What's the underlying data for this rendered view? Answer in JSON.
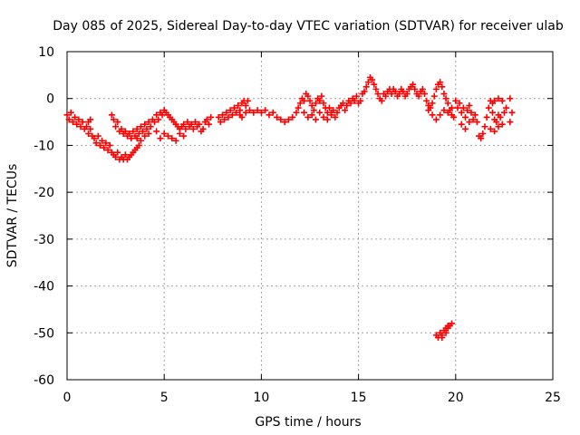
{
  "chart_data": {
    "type": "scatter",
    "title": "Day 085 of 2025, Sidereal Day-to-day VTEC variation (SDTVAR) for receiver ulab",
    "xlabel": "GPS time / hours",
    "ylabel": "SDTVAR / TECUs",
    "xlim": [
      0,
      25
    ],
    "ylim": [
      -60,
      10
    ],
    "xticks": [
      0,
      5,
      10,
      15,
      20,
      25
    ],
    "yticks": [
      -60,
      -50,
      -40,
      -30,
      -20,
      -10,
      0,
      10
    ],
    "xtick_labels": [
      "0",
      "5",
      "10",
      "15",
      "20",
      "25"
    ],
    "ytick_labels": [
      "-60",
      "-50",
      "-40",
      "-30",
      "-20",
      "-10",
      "0",
      "10"
    ],
    "grid": true,
    "marker": "+",
    "color": "#ff0000",
    "series": [
      {
        "name": "SDTVAR",
        "points": [
          [
            0.0,
            -3.5
          ],
          [
            0.1,
            -4.5
          ],
          [
            0.2,
            -3.0
          ],
          [
            0.3,
            -5.0
          ],
          [
            0.4,
            -4.0
          ],
          [
            0.5,
            -5.5
          ],
          [
            0.6,
            -4.5
          ],
          [
            0.7,
            -6.0
          ],
          [
            0.8,
            -5.0
          ],
          [
            0.9,
            -6.5
          ],
          [
            1.0,
            -6.0
          ],
          [
            1.1,
            -7.5
          ],
          [
            1.2,
            -6.5
          ],
          [
            1.3,
            -8.0
          ],
          [
            1.1,
            -5.0
          ],
          [
            1.2,
            -4.5
          ],
          [
            1.4,
            -8.5
          ],
          [
            1.5,
            -9.5
          ],
          [
            1.6,
            -8.0
          ],
          [
            1.7,
            -10.0
          ],
          [
            1.8,
            -9.0
          ],
          [
            1.9,
            -10.5
          ],
          [
            2.0,
            -9.5
          ],
          [
            2.1,
            -11.0
          ],
          [
            2.2,
            -10.0
          ],
          [
            2.3,
            -11.5
          ],
          [
            2.4,
            -12.0
          ],
          [
            2.5,
            -12.5
          ],
          [
            2.6,
            -11.5
          ],
          [
            2.7,
            -13.0
          ],
          [
            2.8,
            -12.5
          ],
          [
            2.9,
            -13.0
          ],
          [
            3.0,
            -12.0
          ],
          [
            3.1,
            -13.0
          ],
          [
            3.2,
            -12.5
          ],
          [
            3.3,
            -12.0
          ],
          [
            3.4,
            -11.5
          ],
          [
            3.5,
            -11.0
          ],
          [
            3.6,
            -10.5
          ],
          [
            3.7,
            -10.0
          ],
          [
            2.3,
            -3.5
          ],
          [
            2.4,
            -4.5
          ],
          [
            2.5,
            -6.0
          ],
          [
            2.6,
            -5.0
          ],
          [
            2.7,
            -7.0
          ],
          [
            2.8,
            -6.5
          ],
          [
            2.9,
            -7.5
          ],
          [
            3.0,
            -7.0
          ],
          [
            3.1,
            -8.0
          ],
          [
            3.2,
            -7.5
          ],
          [
            3.3,
            -8.5
          ],
          [
            3.4,
            -7.0
          ],
          [
            3.5,
            -8.0
          ],
          [
            3.6,
            -6.5
          ],
          [
            3.7,
            -7.5
          ],
          [
            3.8,
            -6.0
          ],
          [
            3.9,
            -7.0
          ],
          [
            4.0,
            -5.5
          ],
          [
            4.1,
            -6.5
          ],
          [
            4.2,
            -5.0
          ],
          [
            4.3,
            -6.0
          ],
          [
            4.4,
            -4.5
          ],
          [
            4.5,
            -5.0
          ],
          [
            4.6,
            -3.5
          ],
          [
            4.7,
            -4.5
          ],
          [
            4.8,
            -3.0
          ],
          [
            4.9,
            -3.5
          ],
          [
            5.0,
            -2.5
          ],
          [
            5.1,
            -3.0
          ],
          [
            5.2,
            -3.5
          ],
          [
            5.3,
            -4.0
          ],
          [
            5.4,
            -4.5
          ],
          [
            5.5,
            -5.0
          ],
          [
            5.6,
            -5.5
          ],
          [
            5.7,
            -6.0
          ],
          [
            5.8,
            -6.5
          ],
          [
            5.9,
            -6.0
          ],
          [
            6.0,
            -5.5
          ],
          [
            6.1,
            -6.5
          ],
          [
            6.2,
            -5.0
          ],
          [
            6.3,
            -6.0
          ],
          [
            6.4,
            -5.5
          ],
          [
            6.5,
            -6.5
          ],
          [
            6.6,
            -5.0
          ],
          [
            6.7,
            -6.0
          ],
          [
            6.8,
            -5.5
          ],
          [
            6.9,
            -7.0
          ],
          [
            7.0,
            -6.5
          ],
          [
            7.1,
            -5.0
          ],
          [
            7.2,
            -4.5
          ],
          [
            7.3,
            -5.5
          ],
          [
            7.4,
            -4.0
          ],
          [
            3.6,
            -8.5
          ],
          [
            3.8,
            -9.0
          ],
          [
            4.0,
            -8.0
          ],
          [
            4.2,
            -7.5
          ],
          [
            4.6,
            -7.0
          ],
          [
            4.8,
            -8.5
          ],
          [
            5.0,
            -7.5
          ],
          [
            5.2,
            -8.0
          ],
          [
            5.4,
            -8.5
          ],
          [
            5.6,
            -9.0
          ],
          [
            5.8,
            -7.5
          ],
          [
            6.0,
            -8.0
          ],
          [
            7.8,
            -4.0
          ],
          [
            7.9,
            -5.0
          ],
          [
            8.0,
            -3.5
          ],
          [
            8.1,
            -4.5
          ],
          [
            8.2,
            -3.0
          ],
          [
            8.3,
            -4.0
          ],
          [
            8.4,
            -2.5
          ],
          [
            8.5,
            -3.5
          ],
          [
            8.6,
            -2.0
          ],
          [
            8.7,
            -3.0
          ],
          [
            8.8,
            -1.5
          ],
          [
            8.9,
            -2.5
          ],
          [
            9.0,
            -1.0
          ],
          [
            9.1,
            -0.5
          ],
          [
            9.2,
            -1.5
          ],
          [
            9.3,
            -0.5
          ],
          [
            8.9,
            -3.5
          ],
          [
            9.0,
            -4.0
          ],
          [
            9.2,
            -3.0
          ],
          [
            9.4,
            -2.5
          ],
          [
            9.6,
            -3.0
          ],
          [
            9.8,
            -2.5
          ],
          [
            10.0,
            -3.0
          ],
          [
            10.2,
            -2.5
          ],
          [
            10.4,
            -3.5
          ],
          [
            10.6,
            -3.0
          ],
          [
            10.8,
            -4.0
          ],
          [
            11.0,
            -4.5
          ],
          [
            11.2,
            -5.0
          ],
          [
            11.4,
            -4.5
          ],
          [
            11.6,
            -4.0
          ],
          [
            11.8,
            -3.0
          ],
          [
            11.9,
            -2.0
          ],
          [
            12.0,
            -1.0
          ],
          [
            12.1,
            0.0
          ],
          [
            12.2,
            -0.5
          ],
          [
            12.3,
            1.0
          ],
          [
            12.4,
            0.5
          ],
          [
            12.5,
            -0.5
          ],
          [
            12.6,
            -1.5
          ],
          [
            12.7,
            -2.5
          ],
          [
            12.8,
            -1.0
          ],
          [
            12.9,
            0.0
          ],
          [
            13.0,
            -0.5
          ],
          [
            13.1,
            0.5
          ],
          [
            13.2,
            -1.0
          ],
          [
            13.3,
            -2.0
          ],
          [
            13.4,
            -3.0
          ],
          [
            13.5,
            -2.0
          ],
          [
            13.6,
            -3.5
          ],
          [
            13.7,
            -2.5
          ],
          [
            13.8,
            -4.0
          ],
          [
            13.9,
            -3.0
          ],
          [
            14.0,
            -2.0
          ],
          [
            14.1,
            -1.5
          ],
          [
            14.2,
            -1.0
          ],
          [
            12.2,
            -3.0
          ],
          [
            12.4,
            -4.0
          ],
          [
            12.6,
            -3.5
          ],
          [
            12.8,
            -4.5
          ],
          [
            13.0,
            -3.0
          ],
          [
            13.2,
            -4.0
          ],
          [
            13.4,
            -4.5
          ],
          [
            13.6,
            -3.0
          ],
          [
            14.3,
            -2.5
          ],
          [
            14.4,
            -1.5
          ],
          [
            14.5,
            -0.5
          ],
          [
            14.6,
            -1.0
          ],
          [
            14.7,
            0.0
          ],
          [
            14.8,
            -0.5
          ],
          [
            14.9,
            0.5
          ],
          [
            15.0,
            -1.0
          ],
          [
            15.1,
            -0.5
          ],
          [
            15.2,
            1.0
          ],
          [
            15.3,
            1.5
          ],
          [
            15.4,
            2.5
          ],
          [
            15.5,
            3.5
          ],
          [
            15.6,
            4.5
          ],
          [
            15.7,
            4.0
          ],
          [
            15.8,
            3.0
          ],
          [
            15.9,
            2.0
          ],
          [
            16.0,
            1.0
          ],
          [
            16.1,
            0.0
          ],
          [
            16.2,
            -0.5
          ],
          [
            16.3,
            1.0
          ],
          [
            16.4,
            0.5
          ],
          [
            16.5,
            1.5
          ],
          [
            16.6,
            2.0
          ],
          [
            16.7,
            1.0
          ],
          [
            16.8,
            2.0
          ],
          [
            16.9,
            1.5
          ],
          [
            17.0,
            0.5
          ],
          [
            17.1,
            1.0
          ],
          [
            17.2,
            2.0
          ],
          [
            17.3,
            1.5
          ],
          [
            17.4,
            0.5
          ],
          [
            17.5,
            1.0
          ],
          [
            17.6,
            2.0
          ],
          [
            17.7,
            2.5
          ],
          [
            17.8,
            3.0
          ],
          [
            17.9,
            2.0
          ],
          [
            18.0,
            1.0
          ],
          [
            18.1,
            0.5
          ],
          [
            18.2,
            1.5
          ],
          [
            18.3,
            2.0
          ],
          [
            18.4,
            1.0
          ],
          [
            18.5,
            -0.5
          ],
          [
            18.6,
            -1.5
          ],
          [
            18.7,
            -2.0
          ],
          [
            18.8,
            -1.0
          ],
          [
            18.9,
            0.5
          ],
          [
            19.0,
            2.0
          ],
          [
            19.1,
            3.0
          ],
          [
            19.2,
            3.5
          ],
          [
            19.3,
            2.5
          ],
          [
            19.4,
            1.0
          ],
          [
            19.5,
            0.0
          ],
          [
            19.6,
            -1.0
          ],
          [
            19.7,
            -2.5
          ],
          [
            19.8,
            -3.5
          ],
          [
            19.9,
            -4.0
          ],
          [
            18.6,
            -2.5
          ],
          [
            18.8,
            -3.5
          ],
          [
            19.0,
            -4.5
          ],
          [
            19.2,
            -3.5
          ],
          [
            19.4,
            -2.5
          ],
          [
            19.6,
            -3.0
          ],
          [
            19.8,
            -2.0
          ],
          [
            20.0,
            -0.5
          ],
          [
            20.1,
            -2.0
          ],
          [
            20.2,
            -1.0
          ],
          [
            20.3,
            -3.0
          ],
          [
            20.4,
            -2.0
          ],
          [
            20.5,
            -4.0
          ],
          [
            20.6,
            -2.5
          ],
          [
            20.7,
            -1.5
          ],
          [
            20.8,
            -3.0
          ],
          [
            20.9,
            -4.5
          ],
          [
            21.0,
            -3.5
          ],
          [
            21.1,
            -5.0
          ],
          [
            21.2,
            -8.0
          ],
          [
            21.3,
            -8.5
          ],
          [
            21.4,
            -7.5
          ],
          [
            21.5,
            -6.0
          ],
          [
            21.6,
            -4.0
          ],
          [
            21.7,
            -2.0
          ],
          [
            21.8,
            -0.5
          ],
          [
            21.9,
            -3.0
          ],
          [
            22.0,
            -4.5
          ],
          [
            22.1,
            -5.0
          ],
          [
            22.2,
            -3.5
          ],
          [
            22.3,
            -4.0
          ],
          [
            20.3,
            -5.5
          ],
          [
            20.5,
            -6.5
          ],
          [
            20.7,
            -5.0
          ],
          [
            21.8,
            -6.5
          ],
          [
            22.0,
            -7.0
          ],
          [
            22.2,
            -6.0
          ],
          [
            22.4,
            -5.5
          ],
          [
            22.5,
            -3.0
          ],
          [
            22.6,
            -2.0
          ],
          [
            22.8,
            0.0
          ],
          [
            22.8,
            -5.0
          ],
          [
            22.9,
            -3.0
          ],
          [
            22.4,
            -0.5
          ],
          [
            22.2,
            0.0
          ],
          [
            21.9,
            -1.0
          ],
          [
            22.0,
            -0.5
          ],
          [
            19.0,
            -50.5
          ],
          [
            19.1,
            -51.0
          ],
          [
            19.2,
            -50.0
          ],
          [
            19.3,
            -50.5
          ],
          [
            19.4,
            -49.5
          ],
          [
            19.5,
            -50.0
          ],
          [
            19.6,
            -49.0
          ],
          [
            19.7,
            -48.5
          ],
          [
            19.8,
            -48.0
          ],
          [
            19.5,
            -49.0
          ],
          [
            19.3,
            -51.0
          ],
          [
            19.6,
            -48.5
          ]
        ]
      }
    ]
  }
}
